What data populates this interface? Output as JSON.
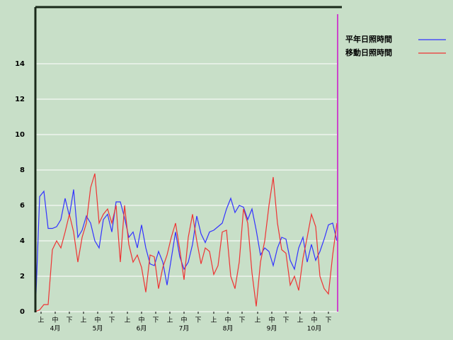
{
  "chart_data": {
    "type": "line",
    "x": [
      0,
      3,
      6,
      9,
      12,
      15,
      18,
      21,
      24,
      27,
      30,
      33,
      36,
      39,
      42,
      45,
      48,
      51,
      54,
      57,
      60,
      63,
      66,
      69,
      72,
      75,
      78,
      81,
      84,
      87,
      90,
      93,
      96,
      99,
      102,
      105,
      108,
      111,
      114,
      117,
      120,
      123,
      126,
      129,
      132,
      135,
      138,
      141,
      144,
      147,
      150,
      153,
      156,
      159,
      162,
      165,
      168,
      171,
      174,
      177,
      180,
      183,
      186,
      189,
      192,
      195,
      198,
      201,
      204,
      207,
      210,
      213
    ],
    "xlim": [
      0,
      214
    ],
    "xticks": [
      {
        "value": 4,
        "label": "上"
      },
      {
        "value": 14,
        "label": "中"
      },
      {
        "value": 24,
        "label": "下"
      },
      {
        "value": 34,
        "label": "上"
      },
      {
        "value": 44,
        "label": "中"
      },
      {
        "value": 54,
        "label": "下"
      },
      {
        "value": 65,
        "label": "上"
      },
      {
        "value": 75,
        "label": "中"
      },
      {
        "value": 85,
        "label": "下"
      },
      {
        "value": 95,
        "label": "上"
      },
      {
        "value": 105,
        "label": "中"
      },
      {
        "value": 115,
        "label": "下"
      },
      {
        "value": 126,
        "label": "上"
      },
      {
        "value": 136,
        "label": "中"
      },
      {
        "value": 146,
        "label": "下"
      },
      {
        "value": 157,
        "label": "上"
      },
      {
        "value": 167,
        "label": "中"
      },
      {
        "value": 177,
        "label": "下"
      },
      {
        "value": 187,
        "label": "上"
      },
      {
        "value": 197,
        "label": "中"
      },
      {
        "value": 207,
        "label": "下"
      }
    ],
    "month_labels": [
      {
        "value": 14,
        "label": "4月"
      },
      {
        "value": 44,
        "label": "5月"
      },
      {
        "value": 75,
        "label": "6月"
      },
      {
        "value": 105,
        "label": "7月"
      },
      {
        "value": 136,
        "label": "8月"
      },
      {
        "value": 167,
        "label": "9月"
      },
      {
        "value": 197,
        "label": "10月"
      }
    ],
    "ylim": [
      0,
      17.2
    ],
    "yticks": [
      0,
      2,
      4,
      6,
      8,
      10,
      12,
      14
    ],
    "grid": true,
    "legend": "top-right",
    "series": [
      {
        "name": "平年日照時間",
        "color": "#3333ff",
        "values": [
          0,
          6.5,
          6.8,
          4.7,
          4.7,
          4.8,
          5.2,
          6.4,
          5.4,
          6.9,
          4.2,
          4.6,
          5.4,
          5.0,
          4.0,
          3.6,
          5.2,
          5.5,
          4.5,
          6.2,
          6.2,
          5.3,
          4.2,
          4.5,
          3.6,
          4.9,
          3.6,
          2.7,
          2.6,
          3.4,
          2.8,
          1.5,
          3.0,
          4.5,
          3.1,
          2.4,
          2.8,
          3.8,
          5.4,
          4.4,
          3.9,
          4.5,
          4.6,
          4.8,
          5.0,
          5.8,
          6.4,
          5.6,
          6.0,
          5.9,
          5.2,
          5.8,
          4.6,
          3.2,
          3.6,
          3.4,
          2.6,
          3.6,
          4.2,
          4.1,
          2.9,
          2.4,
          3.6,
          4.2,
          2.8,
          3.8,
          2.9,
          3.4,
          4.1,
          4.9,
          5.0,
          4.0
        ]
      },
      {
        "name": "移動日照時間",
        "color": "#ee3333",
        "values": [
          0,
          0.1,
          0.4,
          0.4,
          3.5,
          4.0,
          3.6,
          4.5,
          5.5,
          4.5,
          2.8,
          4.2,
          5.0,
          7.0,
          7.8,
          5.0,
          5.5,
          5.8,
          5.0,
          6.0,
          2.8,
          6.0,
          3.8,
          2.8,
          3.2,
          2.5,
          1.1,
          3.2,
          3.1,
          1.3,
          2.5,
          3.2,
          4.2,
          5.0,
          3.5,
          1.8,
          4.2,
          5.5,
          4.0,
          2.7,
          3.6,
          3.4,
          2.1,
          2.6,
          4.5,
          4.6,
          2.0,
          1.3,
          2.8,
          5.8,
          5.0,
          2.2,
          0.3,
          2.8,
          4.0,
          6.0,
          7.6,
          5.0,
          3.5,
          3.3,
          1.5,
          2.0,
          1.2,
          3.0,
          4.2,
          5.5,
          4.8,
          2.0,
          1.3,
          1.0,
          3.2,
          5.0
        ]
      }
    ]
  }
}
